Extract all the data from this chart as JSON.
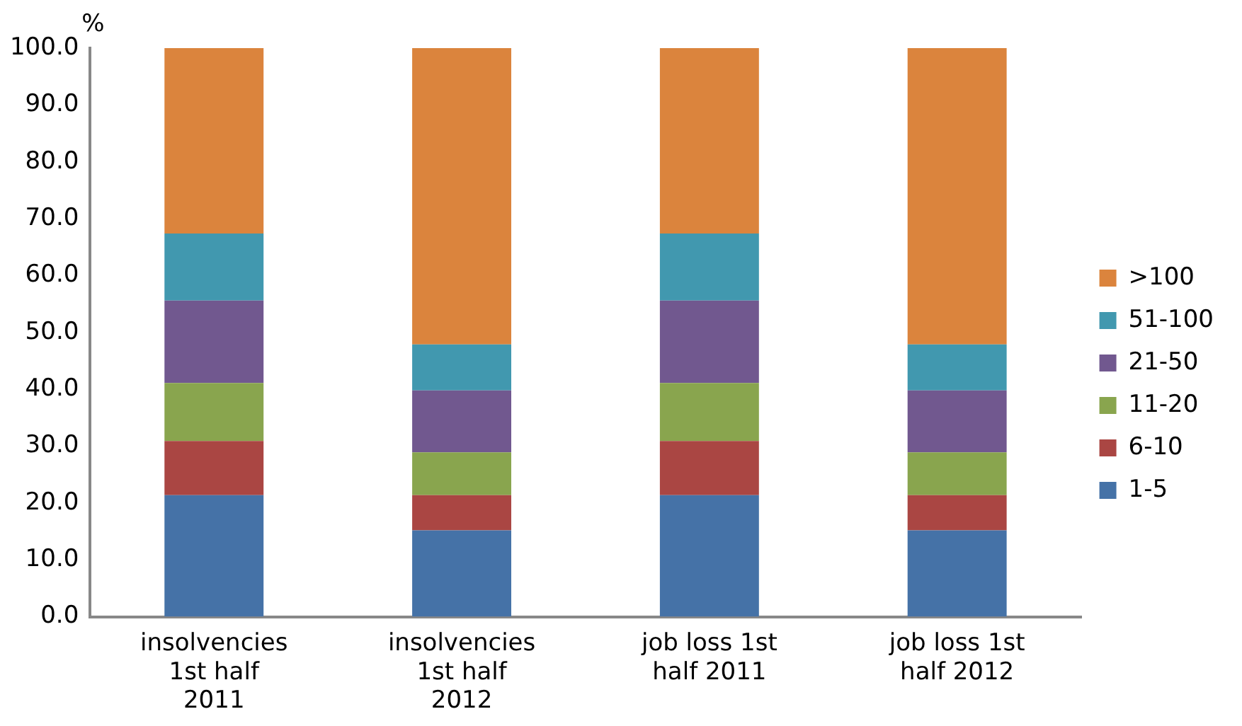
{
  "chart_data": {
    "type": "bar",
    "stacked": true,
    "ylabel": "%",
    "categories": [
      "insolvencies 1st half 2011",
      "insolvencies 1st half 2012",
      "job loss 1st half 2011",
      "job loss 1st half 2012"
    ],
    "series": [
      {
        "name": "1-5",
        "color": "#4572a7",
        "values": [
          21.4,
          15.2,
          21.4,
          15.2
        ]
      },
      {
        "name": "6-10",
        "color": "#aa4643",
        "values": [
          9.5,
          6.2,
          9.5,
          6.2
        ]
      },
      {
        "name": "11-20",
        "color": "#89a54e",
        "values": [
          10.2,
          7.5,
          10.2,
          7.5
        ]
      },
      {
        "name": "21-50",
        "color": "#71588f",
        "values": [
          14.5,
          10.9,
          14.5,
          10.9
        ]
      },
      {
        "name": "51-100",
        "color": "#4198af",
        "values": [
          11.8,
          8.1,
          11.8,
          8.1
        ]
      },
      {
        "name": ">100",
        "color": "#db843d",
        "values": [
          32.6,
          52.1,
          32.6,
          52.1
        ]
      }
    ],
    "ylim": [
      0,
      100
    ],
    "yticks": [
      {
        "value": 0,
        "label": "0.0"
      },
      {
        "value": 10,
        "label": "10.0"
      },
      {
        "value": 20,
        "label": "20.0"
      },
      {
        "value": 30,
        "label": "30.0"
      },
      {
        "value": 40,
        "label": "40.0"
      },
      {
        "value": 50,
        "label": "50.0"
      },
      {
        "value": 60,
        "label": "60.0"
      },
      {
        "value": 70,
        "label": "70.0"
      },
      {
        "value": 80,
        "label": "80.0"
      },
      {
        "value": 90,
        "label": "90.0"
      },
      {
        "value": 100,
        "label": "100.0"
      }
    ],
    "grid": false,
    "legend": "right"
  }
}
